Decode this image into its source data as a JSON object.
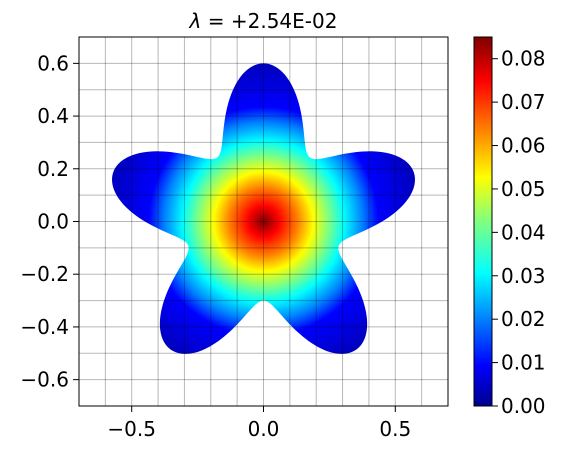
{
  "chart_data": {
    "type": "heatmap",
    "title_symbol": "λ",
    "title_value": "+2.54E-02",
    "xlabel": "",
    "ylabel": "",
    "xlim": [
      -0.7,
      0.7
    ],
    "ylim": [
      -0.7,
      0.7
    ],
    "x_ticks": [
      -0.5,
      0.0,
      0.5
    ],
    "x_tick_labels": [
      "−0.5",
      "0.0",
      "0.5"
    ],
    "y_ticks": [
      0.6,
      0.4,
      0.2,
      0.0,
      -0.2,
      -0.4,
      -0.6
    ],
    "y_tick_labels": [
      "0.6",
      "0.4",
      "0.2",
      "0.0",
      "−0.2",
      "−0.4",
      "−0.6"
    ],
    "grid": true,
    "colormap": "jet",
    "color_range": [
      0.0,
      0.085
    ],
    "colorbar_ticks": [
      0.0,
      0.01,
      0.02,
      0.03,
      0.04,
      0.05,
      0.06,
      0.07,
      0.08
    ],
    "colorbar_tick_labels": [
      "0.00",
      "0.01",
      "0.02",
      "0.03",
      "0.04",
      "0.05",
      "0.06",
      "0.07",
      "0.08"
    ],
    "shape": {
      "type": "five-lobed star",
      "lobes": 5,
      "mean_radius": 0.45,
      "lobe_amplitude": 0.15,
      "top_lobe_angle_deg": 90
    },
    "field": {
      "center": [
        0.0,
        0.0
      ],
      "peak_value": 0.085,
      "boundary_value": 0.0
    }
  },
  "colors": {
    "background": "#ffffff",
    "axes_edge": "#000000",
    "grid": "#000000"
  }
}
